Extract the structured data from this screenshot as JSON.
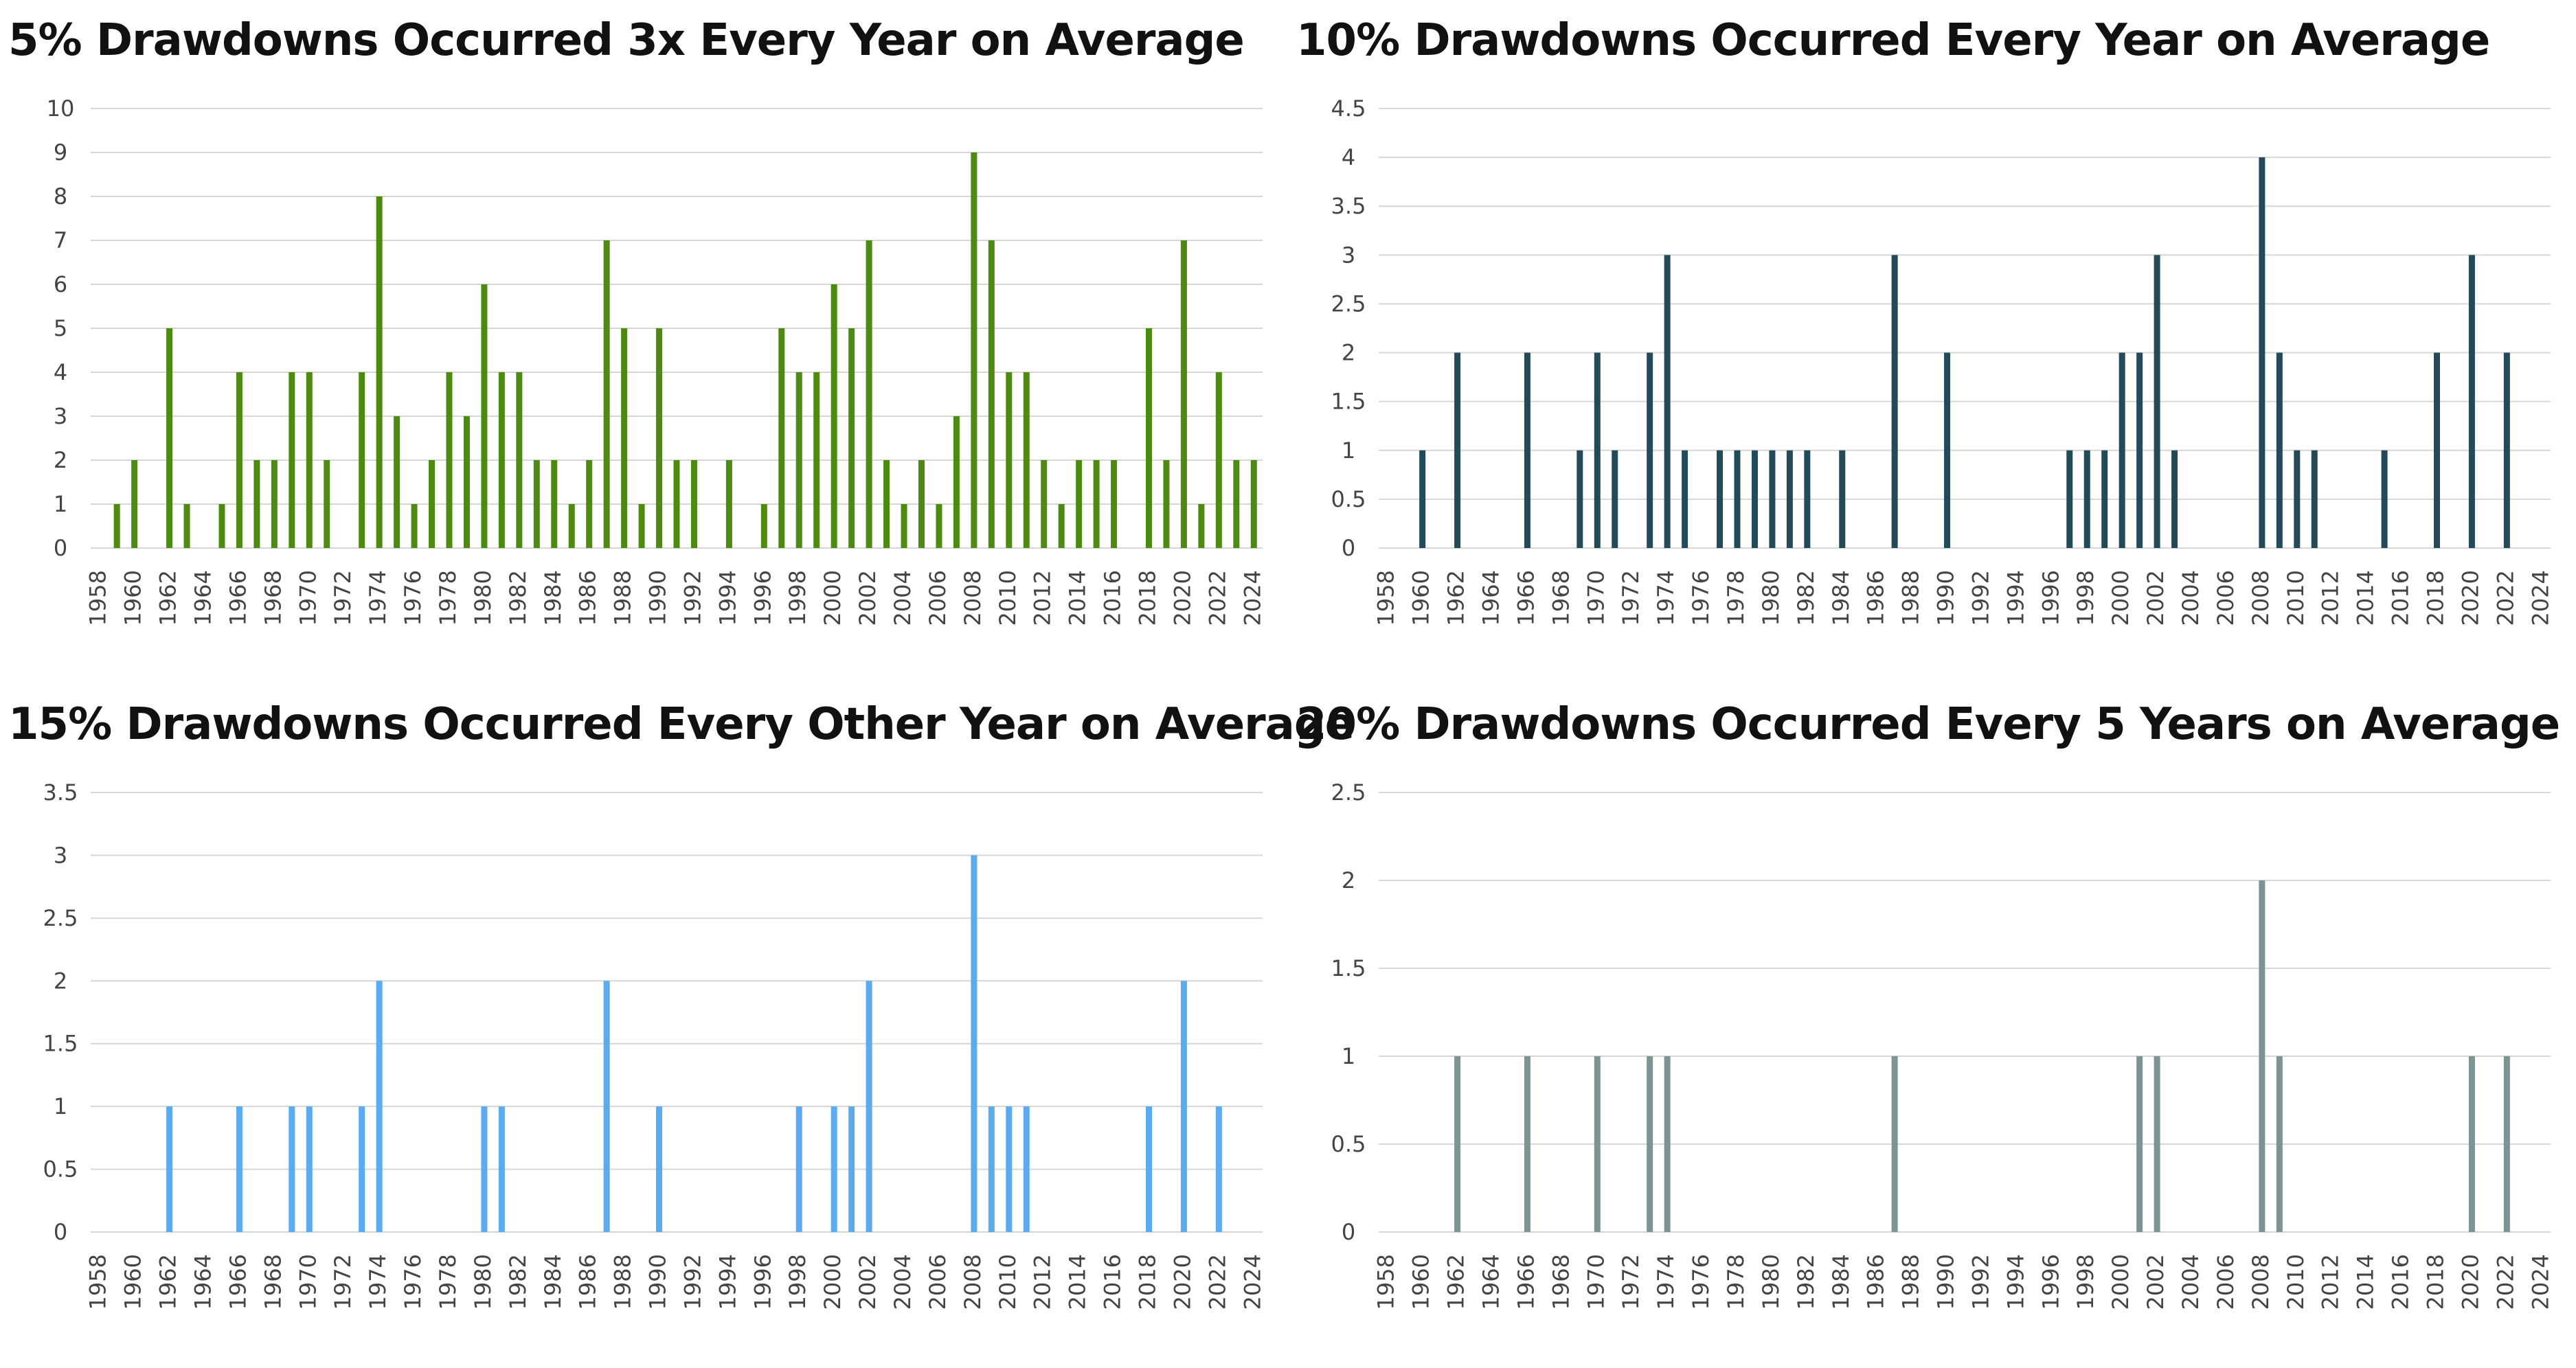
{
  "chart_data": [
    {
      "type": "bar",
      "title": "5% Drawdowns Occurred 3x Every Year on Average",
      "color": "#4d8a10",
      "ylim": [
        0,
        10
      ],
      "yticks": [
        "0",
        "1",
        "2",
        "3",
        "4",
        "5",
        "6",
        "7",
        "8",
        "9",
        "10"
      ],
      "xticks": [
        "1958",
        "1960",
        "1962",
        "1964",
        "1966",
        "1968",
        "1970",
        "1972",
        "1974",
        "1976",
        "1978",
        "1980",
        "1982",
        "1984",
        "1986",
        "1988",
        "1990",
        "1992",
        "1994",
        "1996",
        "1998",
        "2000",
        "2002",
        "2004",
        "2006",
        "2008",
        "2010",
        "2012",
        "2014",
        "2016",
        "2018",
        "2020",
        "2022",
        "2024"
      ],
      "categories": [
        1958,
        1959,
        1960,
        1961,
        1962,
        1963,
        1964,
        1965,
        1966,
        1967,
        1968,
        1969,
        1970,
        1971,
        1972,
        1973,
        1974,
        1975,
        1976,
        1977,
        1978,
        1979,
        1980,
        1981,
        1982,
        1983,
        1984,
        1985,
        1986,
        1987,
        1988,
        1989,
        1990,
        1991,
        1992,
        1993,
        1994,
        1995,
        1996,
        1997,
        1998,
        1999,
        2000,
        2001,
        2002,
        2003,
        2004,
        2005,
        2006,
        2007,
        2008,
        2009,
        2010,
        2011,
        2012,
        2013,
        2014,
        2015,
        2016,
        2017,
        2018,
        2019,
        2020,
        2021,
        2022,
        2023,
        2024
      ],
      "values": [
        0,
        1,
        2,
        0,
        5,
        1,
        0,
        1,
        4,
        2,
        2,
        4,
        4,
        2,
        0,
        4,
        8,
        3,
        1,
        2,
        4,
        3,
        6,
        4,
        4,
        2,
        2,
        1,
        2,
        7,
        5,
        1,
        5,
        2,
        2,
        0,
        2,
        0,
        1,
        5,
        4,
        4,
        6,
        5,
        7,
        2,
        1,
        2,
        1,
        3,
        9,
        7,
        4,
        4,
        2,
        1,
        2,
        2,
        2,
        0,
        5,
        2,
        7,
        1,
        4,
        2,
        2
      ],
      "grid": true
    },
    {
      "type": "bar",
      "title": "10% Drawdowns Occurred Every Year on Average",
      "color": "#234a58",
      "ylim": [
        0,
        4.5
      ],
      "yticks": [
        "0",
        "0.5",
        "1",
        "1.5",
        "2",
        "2.5",
        "3",
        "3.5",
        "4",
        "4.5"
      ],
      "xticks": [
        "1958",
        "1960",
        "1962",
        "1964",
        "1966",
        "1968",
        "1970",
        "1972",
        "1974",
        "1976",
        "1978",
        "1980",
        "1982",
        "1984",
        "1986",
        "1988",
        "1990",
        "1992",
        "1994",
        "1996",
        "1998",
        "2000",
        "2002",
        "2004",
        "2006",
        "2008",
        "2010",
        "2012",
        "2014",
        "2016",
        "2018",
        "2020",
        "2022",
        "2024"
      ],
      "categories": [
        1958,
        1959,
        1960,
        1961,
        1962,
        1963,
        1964,
        1965,
        1966,
        1967,
        1968,
        1969,
        1970,
        1971,
        1972,
        1973,
        1974,
        1975,
        1976,
        1977,
        1978,
        1979,
        1980,
        1981,
        1982,
        1983,
        1984,
        1985,
        1986,
        1987,
        1988,
        1989,
        1990,
        1991,
        1992,
        1993,
        1994,
        1995,
        1996,
        1997,
        1998,
        1999,
        2000,
        2001,
        2002,
        2003,
        2004,
        2005,
        2006,
        2007,
        2008,
        2009,
        2010,
        2011,
        2012,
        2013,
        2014,
        2015,
        2016,
        2017,
        2018,
        2019,
        2020,
        2021,
        2022,
        2023,
        2024
      ],
      "values": [
        0,
        0,
        1,
        0,
        2,
        0,
        0,
        0,
        2,
        0,
        0,
        1,
        2,
        1,
        0,
        2,
        3,
        1,
        0,
        1,
        1,
        1,
        1,
        1,
        1,
        0,
        1,
        0,
        0,
        3,
        0,
        0,
        2,
        0,
        0,
        0,
        0,
        0,
        0,
        1,
        1,
        1,
        2,
        2,
        3,
        1,
        0,
        0,
        0,
        0,
        4,
        2,
        1,
        1,
        0,
        0,
        0,
        1,
        0,
        0,
        2,
        0,
        3,
        0,
        2,
        0,
        0
      ],
      "grid": true
    },
    {
      "type": "bar",
      "title": "15% Drawdowns Occurred Every Other Year on Average",
      "color": "#5aabf0",
      "ylim": [
        0,
        3.5
      ],
      "yticks": [
        "0",
        "0.5",
        "1",
        "1.5",
        "2",
        "2.5",
        "3",
        "3.5"
      ],
      "xticks": [
        "1958",
        "1960",
        "1962",
        "1964",
        "1966",
        "1968",
        "1970",
        "1972",
        "1974",
        "1976",
        "1978",
        "1980",
        "1982",
        "1984",
        "1986",
        "1988",
        "1990",
        "1992",
        "1994",
        "1996",
        "1998",
        "2000",
        "2002",
        "2004",
        "2006",
        "2008",
        "2010",
        "2012",
        "2014",
        "2016",
        "2018",
        "2020",
        "2022",
        "2024"
      ],
      "categories": [
        1958,
        1959,
        1960,
        1961,
        1962,
        1963,
        1964,
        1965,
        1966,
        1967,
        1968,
        1969,
        1970,
        1971,
        1972,
        1973,
        1974,
        1975,
        1976,
        1977,
        1978,
        1979,
        1980,
        1981,
        1982,
        1983,
        1984,
        1985,
        1986,
        1987,
        1988,
        1989,
        1990,
        1991,
        1992,
        1993,
        1994,
        1995,
        1996,
        1997,
        1998,
        1999,
        2000,
        2001,
        2002,
        2003,
        2004,
        2005,
        2006,
        2007,
        2008,
        2009,
        2010,
        2011,
        2012,
        2013,
        2014,
        2015,
        2016,
        2017,
        2018,
        2019,
        2020,
        2021,
        2022,
        2023,
        2024
      ],
      "values": [
        0,
        0,
        0,
        0,
        1,
        0,
        0,
        0,
        1,
        0,
        0,
        1,
        1,
        0,
        0,
        1,
        2,
        0,
        0,
        0,
        0,
        0,
        1,
        1,
        0,
        0,
        0,
        0,
        0,
        2,
        0,
        0,
        1,
        0,
        0,
        0,
        0,
        0,
        0,
        0,
        1,
        0,
        1,
        1,
        2,
        0,
        0,
        0,
        0,
        0,
        3,
        1,
        1,
        1,
        0,
        0,
        0,
        0,
        0,
        0,
        1,
        0,
        2,
        0,
        1,
        0,
        0
      ],
      "grid": true
    },
    {
      "type": "bar",
      "title": "20% Drawdowns Occurred Every 5 Years on Average",
      "color": "#7d9494",
      "ylim": [
        0,
        2.5
      ],
      "yticks": [
        "0",
        "0.5",
        "1",
        "1.5",
        "2",
        "2.5"
      ],
      "xticks": [
        "1958",
        "1960",
        "1962",
        "1964",
        "1966",
        "1968",
        "1970",
        "1972",
        "1974",
        "1976",
        "1978",
        "1980",
        "1982",
        "1984",
        "1986",
        "1988",
        "1990",
        "1992",
        "1994",
        "1996",
        "1998",
        "2000",
        "2002",
        "2004",
        "2006",
        "2008",
        "2010",
        "2012",
        "2014",
        "2016",
        "2018",
        "2020",
        "2022",
        "2024"
      ],
      "categories": [
        1958,
        1959,
        1960,
        1961,
        1962,
        1963,
        1964,
        1965,
        1966,
        1967,
        1968,
        1969,
        1970,
        1971,
        1972,
        1973,
        1974,
        1975,
        1976,
        1977,
        1978,
        1979,
        1980,
        1981,
        1982,
        1983,
        1984,
        1985,
        1986,
        1987,
        1988,
        1989,
        1990,
        1991,
        1992,
        1993,
        1994,
        1995,
        1996,
        1997,
        1998,
        1999,
        2000,
        2001,
        2002,
        2003,
        2004,
        2005,
        2006,
        2007,
        2008,
        2009,
        2010,
        2011,
        2012,
        2013,
        2014,
        2015,
        2016,
        2017,
        2018,
        2019,
        2020,
        2021,
        2022,
        2023,
        2024
      ],
      "values": [
        0,
        0,
        0,
        0,
        1,
        0,
        0,
        0,
        1,
        0,
        0,
        0,
        1,
        0,
        0,
        1,
        1,
        0,
        0,
        0,
        0,
        0,
        0,
        0,
        0,
        0,
        0,
        0,
        0,
        1,
        0,
        0,
        0,
        0,
        0,
        0,
        0,
        0,
        0,
        0,
        0,
        0,
        0,
        1,
        1,
        0,
        0,
        0,
        0,
        0,
        2,
        1,
        0,
        0,
        0,
        0,
        0,
        0,
        0,
        0,
        0,
        0,
        1,
        0,
        1,
        0,
        0
      ],
      "grid": true
    }
  ]
}
